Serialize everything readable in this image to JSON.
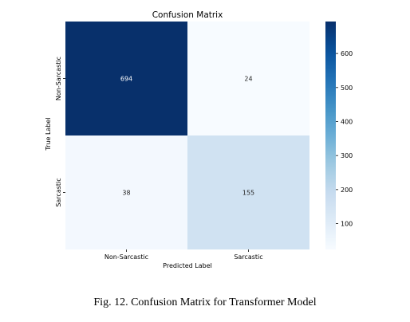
{
  "chart_data": {
    "type": "heatmap",
    "title": "Confusion Matrix",
    "xlabel": "Predicted Label",
    "ylabel": "True Label",
    "x_categories": [
      "Non-Sarcastic",
      "Sarcastic"
    ],
    "y_categories": [
      "Non-Sarcastic",
      "Sarcastic"
    ],
    "values": [
      [
        694,
        24
      ],
      [
        38,
        155
      ]
    ],
    "colormap": "Blues",
    "colorbar": {
      "min": 24,
      "max": 694,
      "ticks": [
        100,
        200,
        300,
        400,
        500,
        600
      ]
    }
  },
  "caption": "Fig. 12. Confusion Matrix for Transformer Model",
  "colors": {
    "low": "#f7fbff",
    "high": "#08306b"
  }
}
